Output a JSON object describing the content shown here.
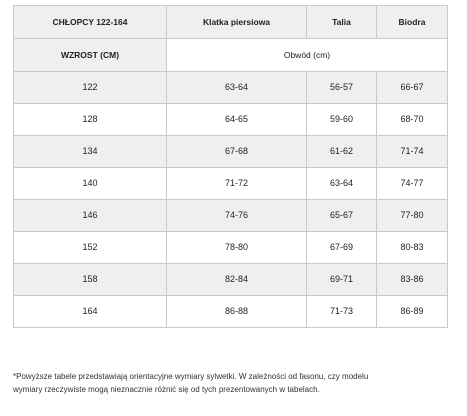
{
  "table": {
    "headers": [
      "CHŁOPCY 122-164",
      "Klatka piersiowa",
      "Talia",
      "Biodra"
    ],
    "subheader": {
      "label": "WZROST (CM)",
      "unit": "Obwód (cm)"
    },
    "rows": [
      [
        "122",
        "63-64",
        "56-57",
        "66-67"
      ],
      [
        "128",
        "64-65",
        "59-60",
        "68-70"
      ],
      [
        "134",
        "67-68",
        "61-62",
        "71-74"
      ],
      [
        "140",
        "71-72",
        "63-64",
        "74-77"
      ],
      [
        "146",
        "74-76",
        "65-67",
        "77-80"
      ],
      [
        "152",
        "78-80",
        "67-69",
        "80-83"
      ],
      [
        "158",
        "82-84",
        "69-71",
        "83-86"
      ],
      [
        "164",
        "86-88",
        "71-73",
        "86-89"
      ]
    ]
  },
  "footnote": {
    "line1": "*Powyższe tabele przedstawiają orientacyjne wymiary sylwetki. W zależności od fasonu, czy modelu",
    "line2": "wymiary rzeczywiste mogą nieznacznie różnić się od tych prezentowanych w tabelach."
  }
}
